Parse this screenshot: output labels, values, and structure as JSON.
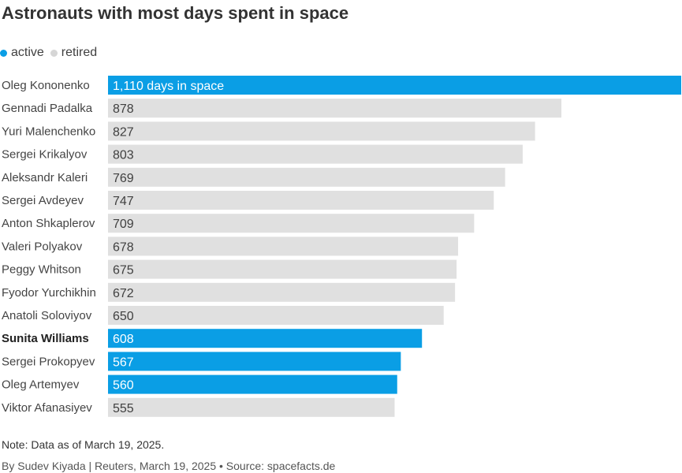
{
  "chart_data": {
    "type": "bar",
    "orientation": "horizontal",
    "title": "Astronauts with most days spent in space",
    "legend": [
      {
        "label": "active",
        "color": "#0a9ee5"
      },
      {
        "label": "retired",
        "color": "#e0e0e0"
      }
    ],
    "first_value_suffix": " days in space",
    "highlighted": "Sunita Williams",
    "bars": [
      {
        "name": "Oleg Kononenko",
        "value": 1110,
        "label": "1,110",
        "status": "active"
      },
      {
        "name": "Gennadi Padalka",
        "value": 878,
        "label": "878",
        "status": "retired"
      },
      {
        "name": "Yuri Malenchenko",
        "value": 827,
        "label": "827",
        "status": "retired"
      },
      {
        "name": "Sergei Krikalyov",
        "value": 803,
        "label": "803",
        "status": "retired"
      },
      {
        "name": "Aleksandr Kaleri",
        "value": 769,
        "label": "769",
        "status": "retired"
      },
      {
        "name": "Sergei Avdeyev",
        "value": 747,
        "label": "747",
        "status": "retired"
      },
      {
        "name": "Anton Shkaplerov",
        "value": 709,
        "label": "709",
        "status": "retired"
      },
      {
        "name": "Valeri Polyakov",
        "value": 678,
        "label": "678",
        "status": "retired"
      },
      {
        "name": "Peggy Whitson",
        "value": 675,
        "label": "675",
        "status": "retired"
      },
      {
        "name": "Fyodor Yurchikhin",
        "value": 672,
        "label": "672",
        "status": "retired"
      },
      {
        "name": "Anatoli Soloviyov",
        "value": 650,
        "label": "650",
        "status": "retired"
      },
      {
        "name": "Sunita Williams",
        "value": 608,
        "label": "608",
        "status": "active"
      },
      {
        "name": "Sergei Prokopyev",
        "value": 567,
        "label": "567",
        "status": "active"
      },
      {
        "name": "Oleg Artemyev",
        "value": 560,
        "label": "560",
        "status": "active"
      },
      {
        "name": "Viktor Afanasiyev",
        "value": 555,
        "label": "555",
        "status": "retired"
      }
    ],
    "xlim": [
      0,
      1110
    ]
  },
  "footer": {
    "note": "Note: Data as of March 19, 2025.",
    "credit": "By Sudev Kiyada | Reuters, March 19, 2025 • Source: spacefacts.de"
  },
  "colors": {
    "active": "#0a9ee5",
    "retired": "#e0e0e0",
    "label_on_active": "#ffffff",
    "label_on_retired": "#404040"
  }
}
